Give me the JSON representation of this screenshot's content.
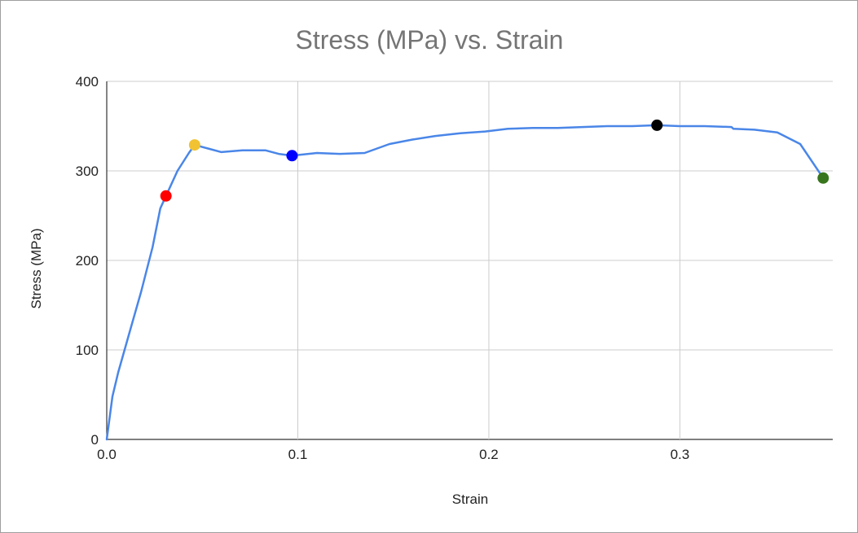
{
  "chart_data": {
    "type": "line",
    "title": "Stress (MPa) vs. Strain",
    "xlabel": "Strain",
    "ylabel": "Stress (MPa)",
    "xlim": [
      0,
      0.38
    ],
    "ylim": [
      0,
      400
    ],
    "x_ticks": [
      0.0,
      0.1,
      0.2,
      0.3
    ],
    "x_tick_labels": [
      "0.0",
      "0.1",
      "0.2",
      "0.3"
    ],
    "y_ticks": [
      0,
      100,
      200,
      300,
      400
    ],
    "y_tick_labels": [
      "0",
      "100",
      "200",
      "300",
      "400"
    ],
    "grid": true,
    "legend": "none",
    "series": [
      {
        "color": "#4a86e8",
        "x": [
          0.0,
          0.003,
          0.006,
          0.012,
          0.018,
          0.024,
          0.028,
          0.031,
          0.037,
          0.043,
          0.046,
          0.053,
          0.06,
          0.071,
          0.083,
          0.09,
          0.097,
          0.11,
          0.122,
          0.135,
          0.148,
          0.16,
          0.172,
          0.185,
          0.198,
          0.21,
          0.223,
          0.236,
          0.249,
          0.262,
          0.275,
          0.288,
          0.3,
          0.313,
          0.327,
          0.328,
          0.339,
          0.351,
          0.363,
          0.375
        ],
        "y": [
          0,
          48,
          75,
          120,
          165,
          215,
          258,
          272,
          300,
          320,
          329,
          325,
          321,
          323,
          323,
          319,
          317,
          320,
          319,
          320,
          330,
          335,
          339,
          342,
          344,
          347,
          348,
          348,
          349,
          350,
          350,
          351,
          350,
          350,
          349,
          347,
          346,
          343,
          330,
          292
        ]
      }
    ],
    "markers": [
      {
        "x": 0.031,
        "y": 272,
        "color": "#ff0000"
      },
      {
        "x": 0.046,
        "y": 329,
        "color": "#f1c232"
      },
      {
        "x": 0.097,
        "y": 317,
        "color": "#0000ff"
      },
      {
        "x": 0.288,
        "y": 351,
        "color": "#000000"
      },
      {
        "x": 0.375,
        "y": 292,
        "color": "#38761d"
      }
    ]
  }
}
